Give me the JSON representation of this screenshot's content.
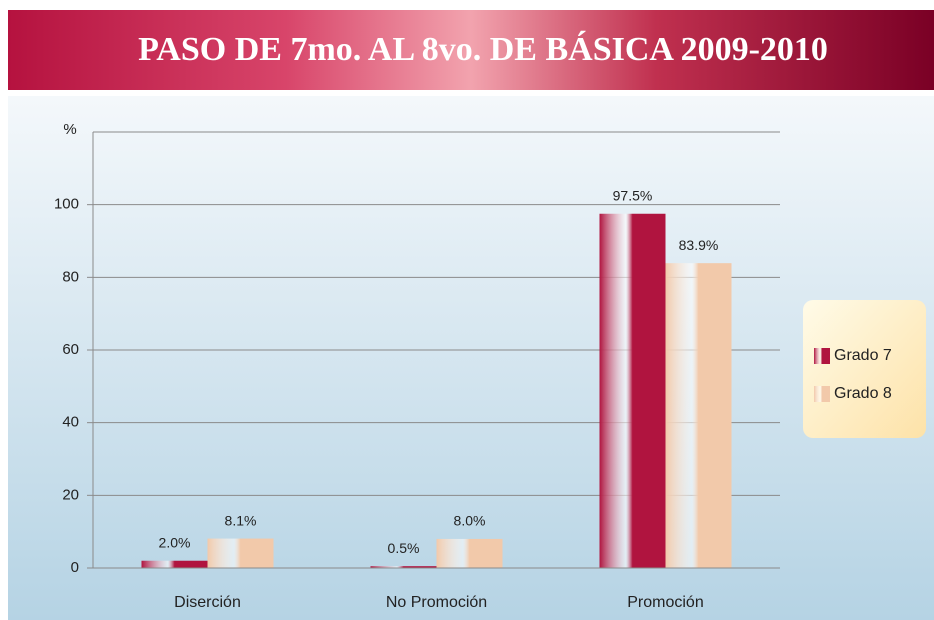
{
  "chart_data": {
    "type": "bar",
    "title": "PASO DE 7mo. AL 8vo. DE BÁSICA 2009-2010",
    "y_label": "%",
    "categories": [
      "Diserción",
      "No Promoción",
      "Promoción"
    ],
    "series": [
      {
        "name": "Grado 7",
        "color": "#b0143f",
        "values": [
          2.0,
          0.5,
          97.5
        ],
        "value_labels": [
          "2.0%",
          "0.5%",
          "97.5%"
        ]
      },
      {
        "name": "Grado 8",
        "color": "#f2c9aa",
        "values": [
          8.1,
          8.0,
          83.9
        ],
        "value_labels": [
          "8.1%",
          "8.0%",
          "83.9%"
        ]
      }
    ],
    "ylim": [
      0,
      120
    ],
    "yticks": [
      0,
      20,
      40,
      60,
      80,
      100
    ],
    "grid": true,
    "legend": "right"
  }
}
